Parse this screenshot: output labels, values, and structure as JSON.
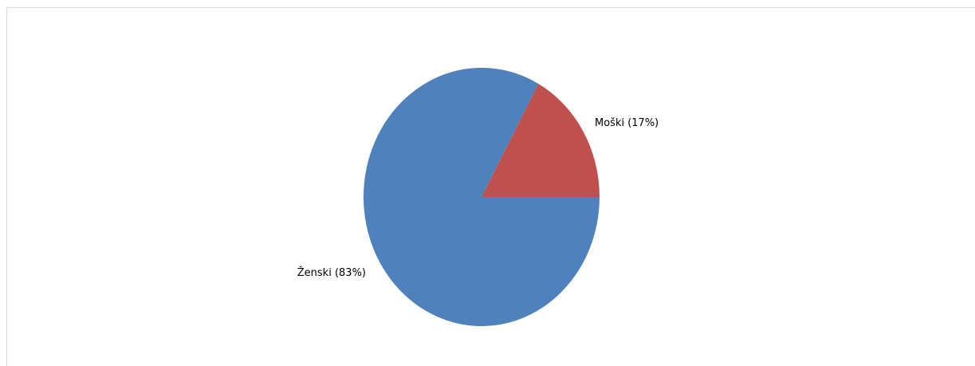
{
  "chart_data": {
    "type": "pie",
    "title": "",
    "slices": [
      {
        "label": "Moški (17%)",
        "value": 17,
        "color": "#c0504d"
      },
      {
        "label": "Ženski (83%)",
        "value": 83,
        "color": "#4f81bd"
      }
    ],
    "legend": "none"
  }
}
